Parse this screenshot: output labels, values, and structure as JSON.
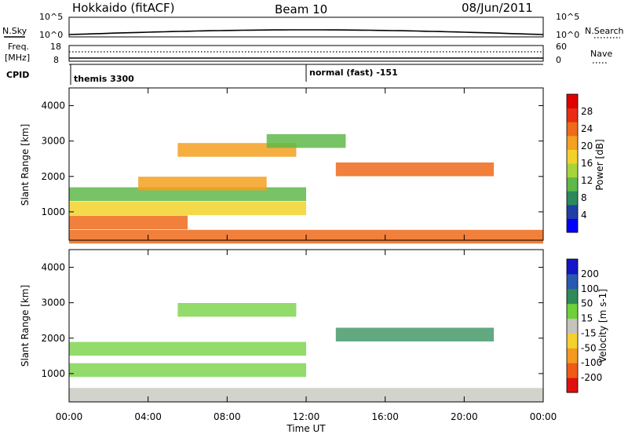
{
  "header": {
    "station": "Hokkaido (fitACF)",
    "beam": "Beam 10",
    "date": "08/Jun/2011"
  },
  "strip": {
    "nsky_label": "N.Sky",
    "nsky_ticks": [
      "10^5",
      "10^0"
    ],
    "nsky_right_ticks": [
      "10^5",
      "10^0"
    ],
    "nsearch_label": "N.Search",
    "nsearch_line_style": "dotted",
    "freq_label_1": "Freq.",
    "freq_label_2": "[MHz]",
    "freq_ticks": [
      "18",
      "8"
    ],
    "nave_ticks": [
      "60",
      "0"
    ],
    "nave_label": "Nave",
    "nave_line_style": "dotted",
    "cpid_label": "CPID",
    "cpid_segments": [
      "themis 3300",
      "normal (fast) -151"
    ]
  },
  "chart_data": [
    {
      "type": "heatmap",
      "panel": "power",
      "xlabel": "",
      "ylabel": "Slant Range [km]",
      "y_ticks": [
        "1000",
        "2000",
        "3000",
        "4000"
      ],
      "ylim": [
        200,
        4500
      ],
      "x_range_hours": [
        0,
        24
      ],
      "colorbar_label": "Power [dB]",
      "colorbar_ticks": [
        "28",
        "24",
        "20",
        "16",
        "12",
        "8",
        "4"
      ],
      "colorbar_colors": [
        "#0000ff",
        "#1f3fa6",
        "#2a8a5a",
        "#5fb84a",
        "#a8d43a",
        "#f2d22a",
        "#f4a020",
        "#ef6a1a",
        "#e82d14",
        "#e00000"
      ],
      "echo_bands": [
        {
          "start_hour": 0.0,
          "end_hour": 24.0,
          "range_km": 300,
          "power_db": 24
        },
        {
          "start_hour": 0.0,
          "end_hour": 6.0,
          "range_km": 700,
          "power_db": 24
        },
        {
          "start_hour": 0.0,
          "end_hour": 12.0,
          "range_km": 1100,
          "power_db": 16
        },
        {
          "start_hour": 0.0,
          "end_hour": 12.0,
          "range_km": 1500,
          "power_db": 12
        },
        {
          "start_hour": 3.5,
          "end_hour": 10.0,
          "range_km": 1800,
          "power_db": 20
        },
        {
          "start_hour": 5.5,
          "end_hour": 11.5,
          "range_km": 2750,
          "power_db": 22
        },
        {
          "start_hour": 13.5,
          "end_hour": 21.5,
          "range_km": 2200,
          "power_db": 26
        },
        {
          "start_hour": 10.0,
          "end_hour": 14.0,
          "range_km": 3000,
          "power_db": 12
        }
      ]
    },
    {
      "type": "heatmap",
      "panel": "velocity",
      "xlabel": "Time UT",
      "ylabel": "Slant Range [km]",
      "x_ticks": [
        "00:00",
        "04:00",
        "08:00",
        "12:00",
        "16:00",
        "20:00",
        "00:00"
      ],
      "y_ticks": [
        "1000",
        "2000",
        "3000",
        "4000"
      ],
      "ylim": [
        200,
        4500
      ],
      "x_range_hours": [
        0,
        24
      ],
      "colorbar_label": "Velocity [m s-1]",
      "colorbar_ticks": [
        "200",
        "100",
        "50",
        "15",
        "-15",
        "-50",
        "-100",
        "-200"
      ],
      "colorbar_colors": [
        "#1515c8",
        "#2a5ab0",
        "#2e8b57",
        "#6fd03a",
        "#c4c4bc",
        "#f4d030",
        "#f49a20",
        "#ef5a18",
        "#e01010"
      ],
      "echo_bands": [
        {
          "start_hour": 0.0,
          "end_hour": 24.0,
          "range_km": 400,
          "velocity": -20
        },
        {
          "start_hour": 0.0,
          "end_hour": 12.0,
          "range_km": 1100,
          "velocity": 0
        },
        {
          "start_hour": 0.0,
          "end_hour": 12.0,
          "range_km": 1700,
          "velocity": 0
        },
        {
          "start_hour": 5.5,
          "end_hour": 11.5,
          "range_km": 2800,
          "velocity": 0
        },
        {
          "start_hour": 13.5,
          "end_hour": 21.5,
          "range_km": 2100,
          "velocity": 30
        }
      ]
    }
  ]
}
